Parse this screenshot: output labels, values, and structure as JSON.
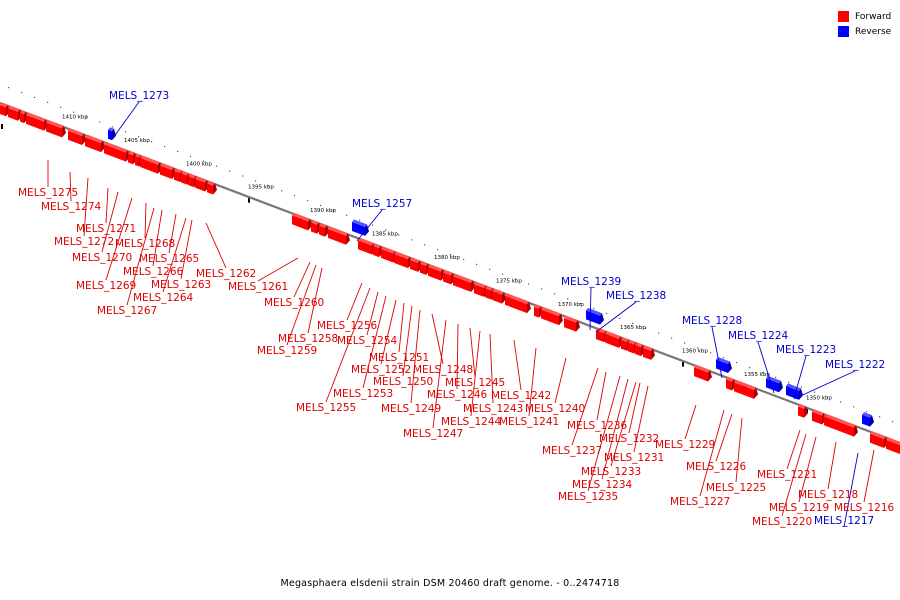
{
  "legend": {
    "forward": {
      "label": "Forward",
      "color": "#ff0000"
    },
    "reverse": {
      "label": "Reverse",
      "color": "#0000ff"
    }
  },
  "caption": "Megasphaera elsdenii strain DSM 20460 draft genome. - 0..2474718",
  "colors": {
    "forward": "#ff0000",
    "reverse": "#0000ff",
    "backbone": "#777777",
    "label_forward": "#dd0000",
    "label_reverse": "#0000cc"
  },
  "ticks": [
    "1410 kbp",
    "1405 kbp",
    "1400 kbp",
    "1395 kbp",
    "1390 kbp",
    "1385 kbp",
    "1380 kbp",
    "1375 kbp",
    "1370 kbp",
    "1365 kbp",
    "1360 kbp",
    "1355 kbp",
    "1350 kbp"
  ],
  "genes": [
    {
      "name": "MELS_1275",
      "strand": "forward"
    },
    {
      "name": "MELS_1274",
      "strand": "forward"
    },
    {
      "name": "MELS_1273",
      "strand": "reverse"
    },
    {
      "name": "MELS_1272",
      "strand": "forward"
    },
    {
      "name": "MELS_1271",
      "strand": "forward"
    },
    {
      "name": "MELS_1270",
      "strand": "forward"
    },
    {
      "name": "MELS_1269",
      "strand": "forward"
    },
    {
      "name": "MELS_1268",
      "strand": "forward"
    },
    {
      "name": "MELS_1267",
      "strand": "forward"
    },
    {
      "name": "MELS_1266",
      "strand": "forward"
    },
    {
      "name": "MELS_1265",
      "strand": "forward"
    },
    {
      "name": "MELS_1264",
      "strand": "forward"
    },
    {
      "name": "MELS_1263",
      "strand": "forward"
    },
    {
      "name": "MELS_1262",
      "strand": "forward"
    },
    {
      "name": "MELS_1261",
      "strand": "forward"
    },
    {
      "name": "MELS_1260",
      "strand": "forward"
    },
    {
      "name": "MELS_1259",
      "strand": "forward"
    },
    {
      "name": "MELS_1258",
      "strand": "forward"
    },
    {
      "name": "MELS_1257",
      "strand": "reverse"
    },
    {
      "name": "MELS_1256",
      "strand": "forward"
    },
    {
      "name": "MELS_1255",
      "strand": "forward"
    },
    {
      "name": "MELS_1254",
      "strand": "forward"
    },
    {
      "name": "MELS_1253",
      "strand": "forward"
    },
    {
      "name": "MELS_1252",
      "strand": "forward"
    },
    {
      "name": "MELS_1251",
      "strand": "forward"
    },
    {
      "name": "MELS_1250",
      "strand": "forward"
    },
    {
      "name": "MELS_1249",
      "strand": "forward"
    },
    {
      "name": "MELS_1248",
      "strand": "forward"
    },
    {
      "name": "MELS_1247",
      "strand": "forward"
    },
    {
      "name": "MELS_1246",
      "strand": "forward"
    },
    {
      "name": "MELS_1245",
      "strand": "forward"
    },
    {
      "name": "MELS_1244",
      "strand": "forward"
    },
    {
      "name": "MELS_1243",
      "strand": "forward"
    },
    {
      "name": "MELS_1242",
      "strand": "forward"
    },
    {
      "name": "MELS_1241",
      "strand": "forward"
    },
    {
      "name": "MELS_1240",
      "strand": "forward"
    },
    {
      "name": "MELS_1239",
      "strand": "reverse"
    },
    {
      "name": "MELS_1238",
      "strand": "reverse"
    },
    {
      "name": "MELS_1237",
      "strand": "forward"
    },
    {
      "name": "MELS_1236",
      "strand": "forward"
    },
    {
      "name": "MELS_1235",
      "strand": "forward"
    },
    {
      "name": "MELS_1234",
      "strand": "forward"
    },
    {
      "name": "MELS_1233",
      "strand": "forward"
    },
    {
      "name": "MELS_1232",
      "strand": "forward"
    },
    {
      "name": "MELS_1231",
      "strand": "forward"
    },
    {
      "name": "MELS_1229",
      "strand": "forward"
    },
    {
      "name": "MELS_1228",
      "strand": "reverse"
    },
    {
      "name": "MELS_1227",
      "strand": "forward"
    },
    {
      "name": "MELS_1226",
      "strand": "forward"
    },
    {
      "name": "MELS_1225",
      "strand": "forward"
    },
    {
      "name": "MELS_1224",
      "strand": "reverse"
    },
    {
      "name": "MELS_1223",
      "strand": "reverse"
    },
    {
      "name": "MELS_1222",
      "strand": "reverse"
    },
    {
      "name": "MELS_1221",
      "strand": "forward"
    },
    {
      "name": "MELS_1220",
      "strand": "forward"
    },
    {
      "name": "MELS_1219",
      "strand": "forward"
    },
    {
      "name": "MELS_1218",
      "strand": "forward"
    },
    {
      "name": "MELS_1217",
      "strand": "reverse"
    },
    {
      "name": "MELS_1216",
      "strand": "forward"
    }
  ]
}
